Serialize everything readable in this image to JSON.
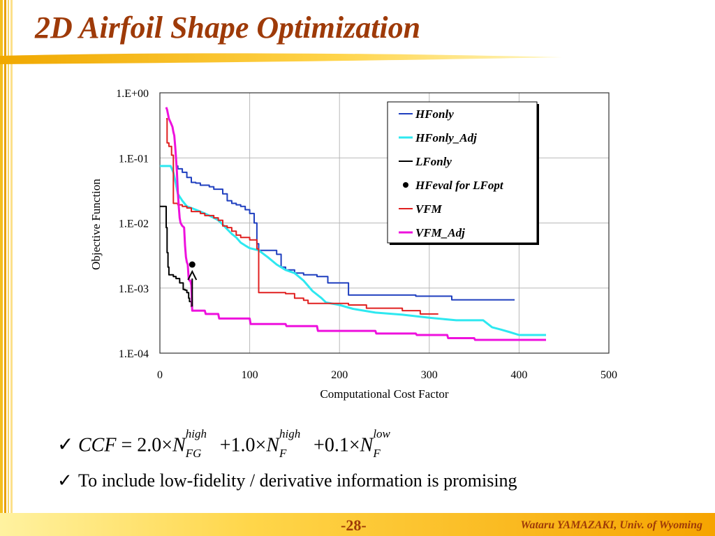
{
  "slide": {
    "title": "2D Airfoil Shape Optimization",
    "page_number": "-28-",
    "author": "Wataru YAMAZAKI, Univ. of Wyoming"
  },
  "bullets": {
    "check_symbol": "✓",
    "formula": {
      "lhs": "CCF",
      "eq": "=",
      "c1": "2.0×",
      "n1": "N",
      "sup1": "high",
      "sub1": "FG",
      "plus1": "+1.0×",
      "n2": "N",
      "sup2": "high",
      "sub2": "F",
      "plus2": "+0.1×",
      "n3": "N",
      "sup3": "low",
      "sub3": "F"
    },
    "text2": "To include low-fidelity / derivative information is promising"
  },
  "colors": {
    "title": "#9e3a08",
    "HFonly": "#1f3fbf",
    "HFonly_Adj": "#2ee8f0",
    "LFonly": "#000000",
    "VFM": "#e02020",
    "VFM_Adj": "#ee11dd"
  },
  "chart_data": {
    "type": "line",
    "xlabel": "Computational Cost Factor",
    "ylabel": "Objective Function",
    "xlim": [
      0,
      500
    ],
    "ylim": [
      0.0001,
      1
    ],
    "yscale": "log",
    "grid": true,
    "legend_position": "top-right",
    "x_ticks": [
      0,
      100,
      200,
      300,
      400,
      500
    ],
    "x_tick_labels": [
      "0",
      "100",
      "200",
      "300",
      "400",
      "500"
    ],
    "y_ticks": [
      1,
      0.1,
      0.01,
      0.001,
      0.0001
    ],
    "y_tick_labels": [
      "1.E+00",
      "1.E-01",
      "1.E-02",
      "1.E-03",
      "1.E-04"
    ],
    "series": [
      {
        "name": "HFonly",
        "step": true,
        "points": [
          [
            18,
            0.075
          ],
          [
            20,
            0.068
          ],
          [
            25,
            0.06
          ],
          [
            30,
            0.05
          ],
          [
            35,
            0.042
          ],
          [
            40,
            0.041
          ],
          [
            45,
            0.038
          ],
          [
            55,
            0.036
          ],
          [
            60,
            0.033
          ],
          [
            70,
            0.028
          ],
          [
            75,
            0.022
          ],
          [
            80,
            0.02
          ],
          [
            85,
            0.019
          ],
          [
            90,
            0.018
          ],
          [
            95,
            0.016
          ],
          [
            100,
            0.014
          ],
          [
            105,
            0.01
          ],
          [
            108,
            0.0048
          ],
          [
            110,
            0.0038
          ],
          [
            130,
            0.0033
          ],
          [
            135,
            0.0021
          ],
          [
            140,
            0.0019
          ],
          [
            150,
            0.0017
          ],
          [
            160,
            0.0016
          ],
          [
            175,
            0.0015
          ],
          [
            187,
            0.0012
          ],
          [
            210,
            0.00078
          ],
          [
            285,
            0.00075
          ],
          [
            325,
            0.00066
          ],
          [
            395,
            0.00066
          ]
        ]
      },
      {
        "name": "HFonly_Adj",
        "step": false,
        "points": [
          [
            0,
            0.075
          ],
          [
            12,
            0.075
          ],
          [
            15,
            0.06
          ],
          [
            17,
            0.045
          ],
          [
            20,
            0.028
          ],
          [
            25,
            0.022
          ],
          [
            30,
            0.018
          ],
          [
            35,
            0.017
          ],
          [
            40,
            0.016
          ],
          [
            45,
            0.015
          ],
          [
            50,
            0.014
          ],
          [
            55,
            0.013
          ],
          [
            60,
            0.012
          ],
          [
            65,
            0.011
          ],
          [
            70,
            0.0095
          ],
          [
            75,
            0.008
          ],
          [
            80,
            0.0068
          ],
          [
            85,
            0.006
          ],
          [
            90,
            0.005
          ],
          [
            95,
            0.0045
          ],
          [
            100,
            0.0041
          ],
          [
            110,
            0.0038
          ],
          [
            120,
            0.003
          ],
          [
            130,
            0.0023
          ],
          [
            140,
            0.0019
          ],
          [
            150,
            0.0017
          ],
          [
            160,
            0.0013
          ],
          [
            170,
            0.0009
          ],
          [
            180,
            0.0007
          ],
          [
            185,
            0.0006
          ],
          [
            200,
            0.00055
          ],
          [
            215,
            0.00048
          ],
          [
            240,
            0.00042
          ],
          [
            270,
            0.00039
          ],
          [
            300,
            0.00035
          ],
          [
            330,
            0.00032
          ],
          [
            360,
            0.00032
          ],
          [
            370,
            0.00025
          ],
          [
            380,
            0.00023
          ],
          [
            390,
            0.00021
          ],
          [
            400,
            0.00019
          ],
          [
            430,
            0.00019
          ]
        ]
      },
      {
        "name": "LFonly",
        "step": true,
        "points": [
          [
            0,
            0.018
          ],
          [
            6,
            0.018
          ],
          [
            7,
            0.0085
          ],
          [
            8,
            0.0035
          ],
          [
            9,
            0.0021
          ],
          [
            10,
            0.0016
          ],
          [
            15,
            0.0015
          ],
          [
            18,
            0.0014
          ],
          [
            22,
            0.0012
          ],
          [
            26,
            0.00095
          ],
          [
            28,
            0.00093
          ],
          [
            30,
            0.00085
          ],
          [
            32,
            0.0007
          ],
          [
            33,
            0.00062
          ],
          [
            35,
            0.00052
          ],
          [
            36,
            0.00052
          ]
        ]
      },
      {
        "name": "VFM",
        "step": true,
        "points": [
          [
            7,
            0.4
          ],
          [
            8,
            0.17
          ],
          [
            10,
            0.15
          ],
          [
            13,
            0.11
          ],
          [
            15,
            0.02
          ],
          [
            20,
            0.019
          ],
          [
            25,
            0.018
          ],
          [
            30,
            0.017
          ],
          [
            35,
            0.015
          ],
          [
            45,
            0.014
          ],
          [
            50,
            0.013
          ],
          [
            60,
            0.012
          ],
          [
            65,
            0.011
          ],
          [
            70,
            0.009
          ],
          [
            75,
            0.0085
          ],
          [
            80,
            0.0075
          ],
          [
            85,
            0.0065
          ],
          [
            90,
            0.006
          ],
          [
            100,
            0.0055
          ],
          [
            108,
            0.004
          ],
          [
            110,
            0.00085
          ],
          [
            140,
            0.00082
          ],
          [
            150,
            0.0007
          ],
          [
            160,
            0.00065
          ],
          [
            165,
            0.00058
          ],
          [
            210,
            0.00055
          ],
          [
            230,
            0.00049
          ],
          [
            270,
            0.00045
          ],
          [
            290,
            0.0004
          ],
          [
            310,
            0.0004
          ]
        ]
      },
      {
        "name": "VFM_Adj",
        "step": false,
        "points": [
          [
            7,
            0.6
          ],
          [
            8,
            0.55
          ],
          [
            10,
            0.4
          ],
          [
            12,
            0.35
          ],
          [
            14,
            0.3
          ],
          [
            15,
            0.25
          ],
          [
            16,
            0.22
          ],
          [
            17,
            0.15
          ],
          [
            18,
            0.1
          ],
          [
            19,
            0.06
          ],
          [
            20,
            0.03
          ],
          [
            21,
            0.018
          ],
          [
            22,
            0.012
          ],
          [
            23,
            0.01
          ],
          [
            25,
            0.009
          ],
          [
            26,
            0.0088
          ],
          [
            27,
            0.0085
          ],
          [
            28,
            0.0045
          ],
          [
            29,
            0.003
          ],
          [
            30,
            0.0025
          ],
          [
            31,
            0.0023
          ],
          [
            32,
            0.0014
          ],
          [
            33,
            0.0013
          ],
          [
            34,
            0.0013
          ],
          [
            35,
            0.0011
          ],
          [
            36,
            0.00045
          ],
          [
            50,
            0.00045
          ],
          [
            51,
            0.0004
          ],
          [
            65,
            0.0004
          ],
          [
            66,
            0.00034
          ],
          [
            100,
            0.00034
          ],
          [
            101,
            0.00028
          ],
          [
            140,
            0.00028
          ],
          [
            141,
            0.00026
          ],
          [
            175,
            0.00026
          ],
          [
            176,
            0.00022
          ],
          [
            240,
            0.00022
          ],
          [
            241,
            0.0002
          ],
          [
            265,
            0.0002
          ],
          [
            266,
            0.0002
          ],
          [
            285,
            0.0002
          ],
          [
            286,
            0.00019
          ],
          [
            320,
            0.00019
          ],
          [
            321,
            0.00017
          ],
          [
            350,
            0.00017
          ],
          [
            351,
            0.00016
          ],
          [
            430,
            0.00016
          ]
        ]
      }
    ],
    "hfeval_point": {
      "name": "HFeval for LFopt",
      "x": 36,
      "y": 0.0023
    },
    "legend": [
      "HFonly",
      "HFonly_Adj",
      "LFonly",
      "HFeval for LFopt",
      "VFM",
      "VFM_Adj"
    ]
  }
}
